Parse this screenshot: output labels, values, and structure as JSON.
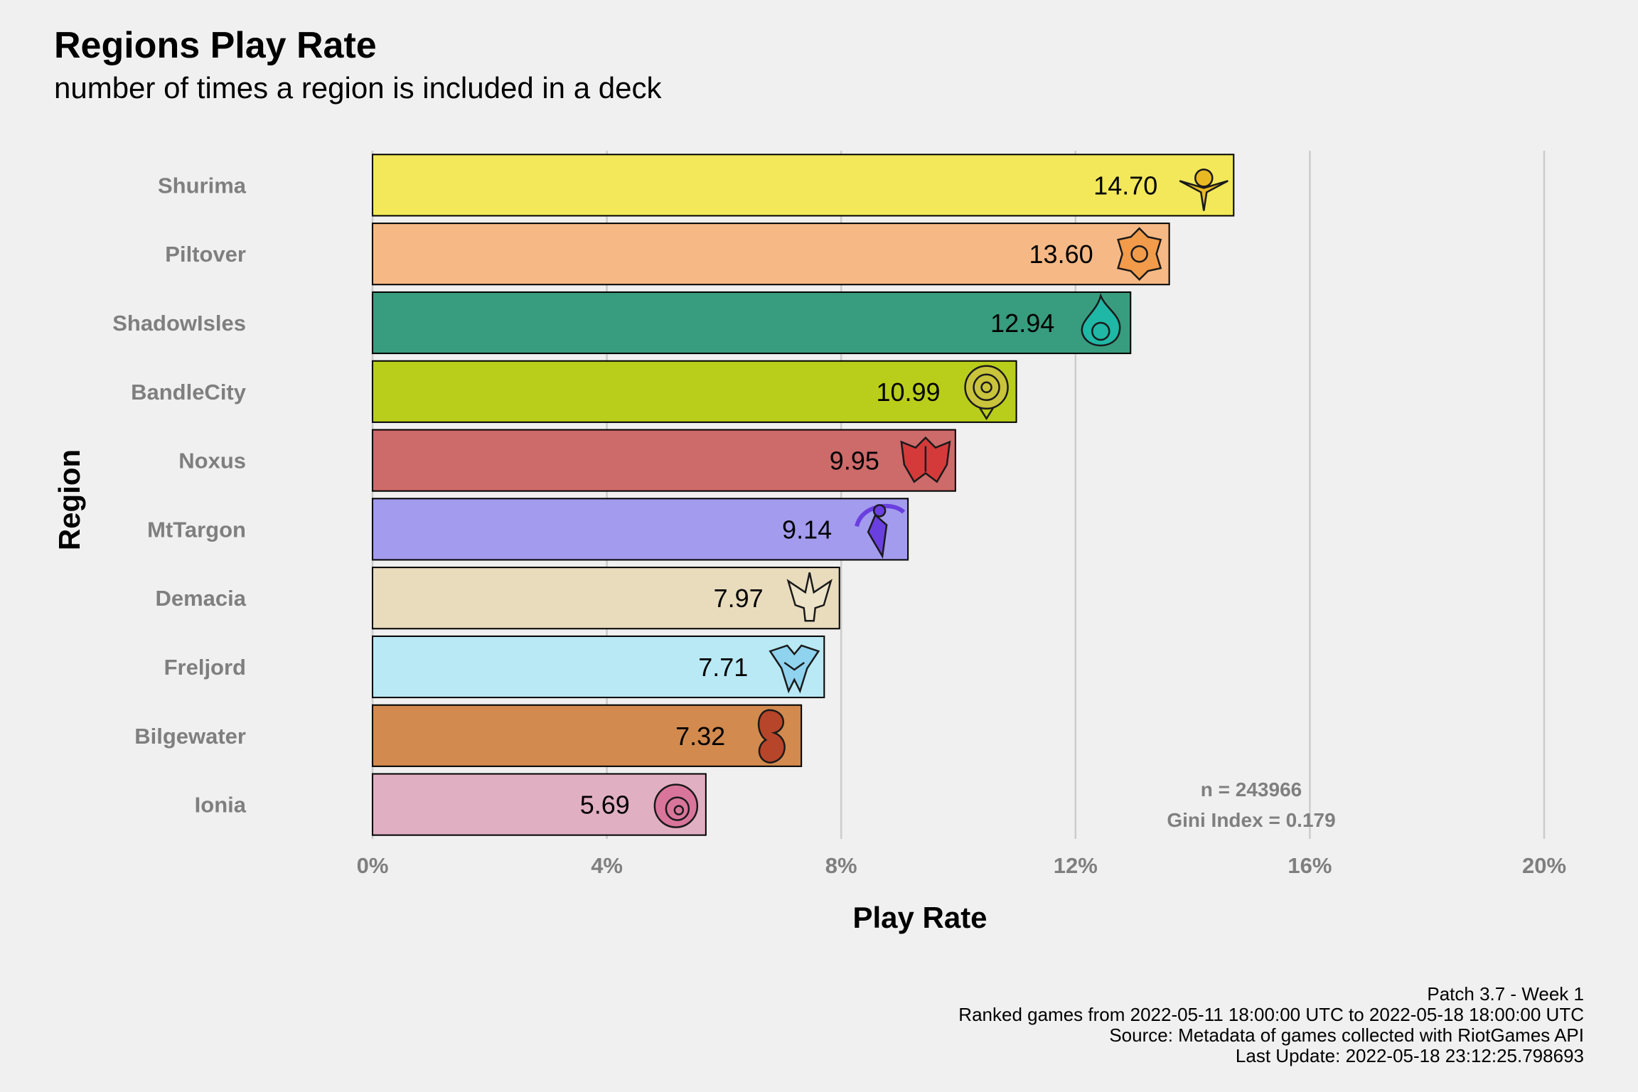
{
  "title": "Regions Play Rate",
  "subtitle": "number of times a region is included in a deck",
  "caption": [
    "Patch 3.7 - Week 1",
    "Ranked games from 2022-05-11 18:00:00 UTC to 2022-05-18 18:00:00 UTC",
    "Source: Metadata of games collected with RiotGames API",
    "Last Update: 2022-05-18 23:12:25.798693"
  ],
  "annotations": [
    "n = 243966",
    "Gini Index = 0.179"
  ],
  "chart_data": {
    "type": "bar",
    "orientation": "horizontal",
    "title": "Regions Play Rate",
    "subtitle": "number of times a region is included in a deck",
    "xlabel": "Play Rate",
    "ylabel": "Region",
    "xlim": [
      0,
      20
    ],
    "x_ticks": [
      0,
      4,
      8,
      12,
      16,
      20
    ],
    "x_tick_labels": [
      "0%",
      "4%",
      "8%",
      "12%",
      "16%",
      "20%"
    ],
    "grid": "vertical major gridlines",
    "categories": [
      "Shurima",
      "Piltover",
      "ShadowIsles",
      "BandleCity",
      "Noxus",
      "MtTargon",
      "Demacia",
      "Freljord",
      "Bilgewater",
      "Ionia"
    ],
    "values": [
      14.7,
      13.6,
      12.94,
      10.99,
      9.95,
      9.14,
      7.97,
      7.71,
      7.32,
      5.69
    ],
    "value_labels": [
      "14.70",
      "13.60",
      "12.94",
      "10.99",
      "9.95",
      "9.14",
      "7.97",
      "7.71",
      "7.32",
      "5.69"
    ],
    "colors": [
      "#f2e85a",
      "#f6b985",
      "#389c7e",
      "#b9cd1b",
      "#cd6a6a",
      "#a39bee",
      "#e8dcbd",
      "#b8e9f5",
      "#d28a4e",
      "#e1afc2"
    ],
    "icon_colors": [
      "#e8b923",
      "#f29b4a",
      "#1fb7a6",
      "#c9c43b",
      "#d43a3a",
      "#6a3fe0",
      "#ece3c8",
      "#8fd3ef",
      "#b7452a",
      "#d9759b"
    ],
    "icons": [
      "shurima-icon",
      "piltover-icon",
      "shadowisles-icon",
      "bandlecity-icon",
      "noxus-icon",
      "mttargon-icon",
      "demacia-icon",
      "freljord-icon",
      "bilgewater-icon",
      "ionia-icon"
    ]
  }
}
